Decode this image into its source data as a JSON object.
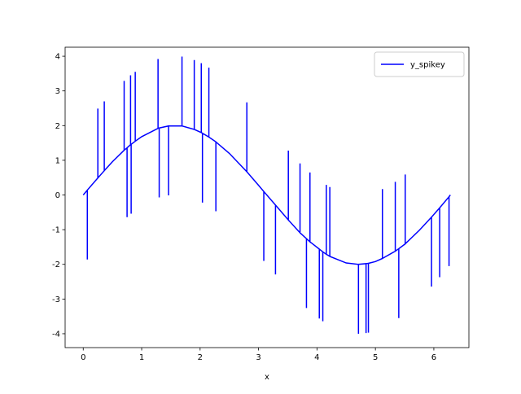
{
  "chart_data": {
    "type": "line",
    "x_label": "x",
    "x": [
      0,
      0.07,
      0.07,
      0.07,
      0.25,
      0.25,
      0.25,
      0.36,
      0.36,
      0.36,
      0.5,
      0.7,
      0.7,
      0.7,
      0.75,
      0.75,
      0.75,
      0.81,
      0.81,
      0.81,
      0.82,
      0.82,
      0.82,
      0.89,
      0.89,
      0.89,
      1.0,
      1.28,
      1.28,
      1.28,
      1.3,
      1.3,
      1.3,
      1.46,
      1.46,
      1.46,
      1.69,
      1.69,
      1.69,
      1.9,
      1.9,
      1.9,
      2.02,
      2.02,
      2.02,
      2.04,
      2.04,
      2.04,
      2.15,
      2.15,
      2.15,
      2.27,
      2.27,
      2.27,
      2.5,
      2.8,
      2.8,
      2.8,
      3.0,
      3.09,
      3.09,
      3.09,
      3.29,
      3.29,
      3.29,
      3.51,
      3.51,
      3.51,
      3.71,
      3.71,
      3.71,
      3.82,
      3.82,
      3.82,
      3.88,
      3.88,
      3.88,
      4.04,
      4.04,
      4.04,
      4.1,
      4.1,
      4.1,
      4.16,
      4.16,
      4.16,
      4.22,
      4.22,
      4.22,
      4.5,
      4.71,
      4.71,
      4.71,
      4.84,
      4.84,
      4.84,
      4.88,
      4.88,
      4.88,
      5.0,
      5.12,
      5.12,
      5.12,
      5.34,
      5.34,
      5.34,
      5.4,
      5.4,
      5.4,
      5.51,
      5.51,
      5.51,
      5.75,
      5.96,
      5.96,
      5.96,
      6.1,
      6.1,
      6.1,
      6.26,
      6.26,
      6.26,
      6.283
    ],
    "series": [
      {
        "name": "y_spikey",
        "color": "#0000ff",
        "values": [
          0,
          0.14,
          -1.86,
          0.14,
          0.49,
          2.49,
          0.49,
          0.7,
          2.7,
          0.7,
          0.96,
          1.29,
          3.29,
          1.29,
          1.36,
          -0.64,
          1.36,
          1.45,
          3.45,
          1.45,
          1.46,
          -0.54,
          1.46,
          1.55,
          3.55,
          1.55,
          1.68,
          1.92,
          3.92,
          1.92,
          1.93,
          -0.07,
          1.93,
          1.99,
          -0.01,
          1.99,
          1.99,
          3.99,
          1.99,
          1.89,
          3.89,
          1.89,
          1.8,
          3.8,
          1.8,
          1.78,
          -0.22,
          1.78,
          1.67,
          3.67,
          1.67,
          1.53,
          -0.47,
          1.53,
          1.2,
          0.67,
          2.67,
          0.67,
          0.28,
          0.1,
          -1.9,
          0.1,
          -0.29,
          -2.29,
          -0.29,
          -0.72,
          1.28,
          -0.72,
          -1.09,
          0.91,
          -1.09,
          -1.26,
          -3.26,
          -1.26,
          -1.35,
          0.65,
          -1.35,
          -1.56,
          -3.56,
          -1.56,
          -1.64,
          -3.64,
          -1.64,
          -1.71,
          0.29,
          -1.71,
          -1.77,
          0.23,
          -1.77,
          -1.96,
          -2.0,
          -4.0,
          -2.0,
          -1.98,
          -3.98,
          -1.98,
          -1.97,
          -3.97,
          -1.97,
          -1.92,
          -1.83,
          0.17,
          -1.83,
          -1.62,
          0.38,
          -1.62,
          -1.55,
          -3.55,
          -1.55,
          -1.41,
          0.59,
          -1.41,
          -1.02,
          -0.64,
          -2.64,
          -0.64,
          -0.37,
          -2.37,
          -0.37,
          -0.05,
          -2.05,
          -0.05,
          0
        ]
      }
    ],
    "xlim": [
      -0.31,
      6.6
    ],
    "ylim": [
      -4.4,
      4.26
    ],
    "xticks": [
      0,
      1,
      2,
      3,
      4,
      5,
      6
    ],
    "yticks": [
      -4,
      -3,
      -2,
      -1,
      0,
      1,
      2,
      3,
      4
    ],
    "legend": "upper right",
    "grid": false
  }
}
